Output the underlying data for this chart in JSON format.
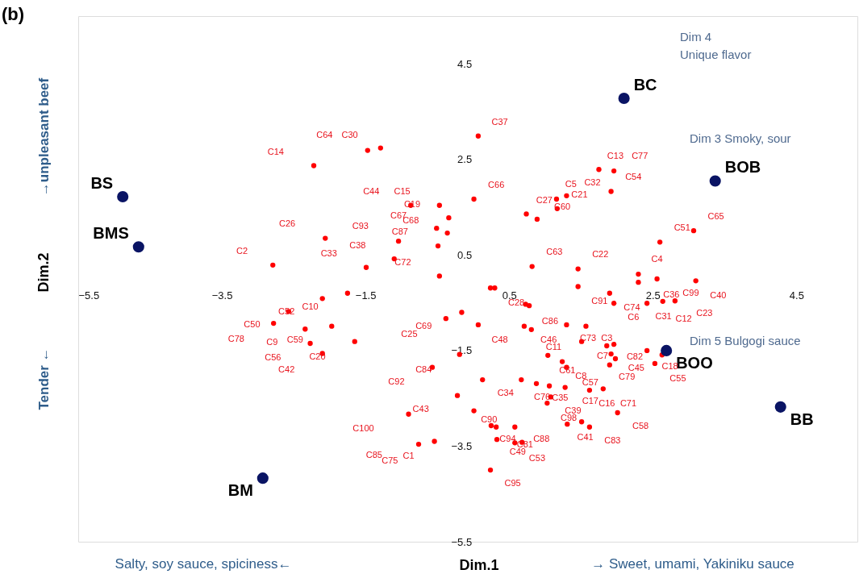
{
  "chart_data": {
    "type": "scatter",
    "title": "(b)",
    "xlabel": "Dim.1",
    "ylabel": "Dim.2",
    "xlim": [
      -5.5,
      5.35
    ],
    "ylim": [
      -5.5,
      5.5
    ],
    "xticks": [
      -5.5,
      -3.5,
      -1.5,
      0.5,
      2.5,
      4.5
    ],
    "yticks": [
      -5.5,
      -3.5,
      -1.5,
      0.5,
      2.5,
      4.5
    ],
    "grid": false,
    "marker": "circle",
    "series": [
      {
        "color": "#ff0000",
        "x": [
          -2.22,
          -1.47,
          -1.29,
          -2.06,
          -2.79,
          -1.49,
          -1.1,
          -1.04,
          -0.87,
          -0.47,
          -0.34,
          -0.51,
          -0.36,
          -0.49,
          -0.47,
          0.01,
          0.07,
          0.74,
          0.89,
          1.16,
          1.17,
          1.3,
          1.75,
          1.96,
          1.92,
          2.6,
          3.07,
          0.82,
          1.46,
          2.3,
          2.56,
          3.1,
          -2.1,
          -1.75,
          -2.57,
          -2.78,
          -2.34,
          -1.97,
          -2.27,
          -1.65,
          -2.1,
          -0.38,
          -0.16,
          0.07,
          -0.19,
          -0.57,
          -0.22,
          0.01,
          -0.9,
          -0.76,
          -0.54,
          0.24,
          0.3,
          1.46,
          2.3,
          0.73,
          0.78,
          1.9,
          1.96,
          2.42,
          2.64,
          2.81,
          0.71,
          0.81,
          1.3,
          1.57,
          1.51,
          1.86,
          1.96,
          1.04,
          1.92,
          1.98,
          1.9,
          2.42,
          2.53,
          2.63,
          1.24,
          1.3,
          0.13,
          0.67,
          0.88,
          1.06,
          1.28,
          1.62,
          1.81,
          1.08,
          1.03,
          2.01,
          1.31,
          1.51,
          1.62,
          0.32,
          0.58,
          0.25,
          0.33,
          0.58,
          0.68,
          0.24
        ],
        "values": [
          2.37,
          2.69,
          2.74,
          0.85,
          0.29,
          0.24,
          0.42,
          0.79,
          1.54,
          1.54,
          1.28,
          1.06,
          0.96,
          0.69,
          0.06,
          1.67,
          2.99,
          1.36,
          1.25,
          1.67,
          1.47,
          1.74,
          2.29,
          2.26,
          1.83,
          0.77,
          1.01,
          0.26,
          0.21,
          0.1,
          0.0,
          -0.04,
          -0.41,
          -0.3,
          -0.68,
          -0.93,
          -1.05,
          -0.99,
          -1.35,
          -1.31,
          -1.56,
          -0.83,
          -0.7,
          -0.96,
          -1.58,
          -1.85,
          -2.44,
          -2.76,
          -2.83,
          -3.46,
          -3.4,
          -0.19,
          -0.19,
          -0.16,
          -0.07,
          -0.53,
          -0.56,
          -0.3,
          -0.51,
          -0.51,
          -0.47,
          -0.46,
          -0.99,
          -1.06,
          -0.96,
          -0.99,
          -1.31,
          -1.4,
          -1.37,
          -1.6,
          -1.57,
          -1.67,
          -1.8,
          -1.5,
          -1.77,
          -1.59,
          -1.73,
          -1.85,
          -2.11,
          -2.11,
          -2.19,
          -2.24,
          -2.27,
          -2.33,
          -2.3,
          -2.47,
          -2.6,
          -2.8,
          -3.04,
          -2.99,
          -3.1,
          -3.1,
          -3.1,
          -3.07,
          -3.36,
          -3.43,
          -3.42,
          -4.0
        ]
      },
      {
        "name": "BS",
        "color": "#0a1464",
        "x": [
          -4.88
        ],
        "values": [
          1.72
        ]
      },
      {
        "name": "BMS",
        "color": "#0a1464",
        "x": [
          -4.66
        ],
        "values": [
          0.67
        ]
      },
      {
        "name": "BC",
        "color": "#0a1464",
        "x": [
          2.1
        ],
        "values": [
          3.78
        ]
      },
      {
        "name": "BOB",
        "color": "#0a1464",
        "x": [
          3.37
        ],
        "values": [
          2.05
        ]
      },
      {
        "name": "BOO",
        "color": "#0a1464",
        "x": [
          2.69
        ],
        "values": [
          -1.5
        ]
      },
      {
        "name": "BB",
        "color": "#0a1464",
        "x": [
          4.28
        ],
        "values": [
          -2.68
        ]
      },
      {
        "name": "BM",
        "color": "#0a1464",
        "x": [
          -2.93
        ],
        "values": [
          -4.17
        ]
      }
    ],
    "annotations": [
      "→unpleasant beef",
      "Tender ←",
      "Salty, soy sauce, spiciness←",
      "→ Sweet, umami, Yakiniku sauce",
      "Dim 4\nUnique flavor",
      "Dim 3 Smoky,  sour",
      "Dim 5 Bulgogi sauce",
      "C14",
      "C64",
      "C30",
      "C44",
      "C15",
      "C19",
      "C67",
      "C68",
      "C26",
      "C93",
      "C87",
      "C38",
      "C33",
      "C2",
      "C72",
      "C37",
      "C13",
      "C77",
      "C54",
      "C66",
      "C5",
      "C32",
      "C21",
      "C27",
      "C60",
      "C63",
      "C22",
      "C4",
      "C51",
      "C65",
      "C52",
      "C10",
      "C50",
      "C78",
      "C9",
      "C59",
      "C56",
      "C20",
      "C42",
      "C69",
      "C25",
      "C84",
      "C92",
      "C43",
      "C100",
      "C85",
      "C75",
      "C1",
      "C28",
      "C91",
      "C74",
      "C6",
      "C86",
      "C48",
      "C46",
      "C11",
      "C73",
      "C3",
      "C7",
      "C82",
      "C45",
      "C79",
      "C61",
      "C8",
      "C57",
      "C34",
      "C76",
      "C35",
      "C17",
      "C39",
      "C98",
      "C16",
      "C71",
      "C58",
      "C41",
      "C83",
      "C90",
      "C94",
      "C81",
      "C88",
      "C49",
      "C53",
      "C95",
      "C36",
      "C99",
      "C40",
      "C31",
      "C12",
      "C23",
      "C18",
      "C55"
    ]
  }
}
